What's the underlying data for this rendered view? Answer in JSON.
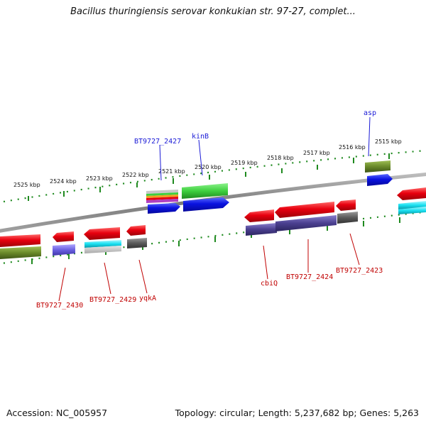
{
  "header": {
    "title": "Bacillus thuringiensis serovar konkukian str. 97-27, complet..."
  },
  "footer": {
    "accession": "Accession: NC_005957",
    "topology": "Topology: circular; Length: 5,237,682 bp; Genes: 5,263"
  },
  "kbp_labels": [
    "2525 kbp",
    "2524 kbp",
    "2523 kbp",
    "2522 kbp",
    "2521 kbp",
    "2520 kbp",
    "2519 kbp",
    "2518 kbp",
    "2517 kbp",
    "2516 kbp",
    "2515 kbp"
  ],
  "gene_labels_forward": [
    "BT9727_2427",
    "kinB",
    "asp"
  ],
  "gene_labels_reverse": [
    "BT9727_2430",
    "BT9727_2429",
    "yqkA",
    "cbiQ",
    "BT9727_2424",
    "BT9727_2423"
  ],
  "colors": {
    "forward_label": "#1a1ad6",
    "reverse_label": "#c00000",
    "backbone": "#888888",
    "tick": "#1f8a1f",
    "cds_red": "#e8000f",
    "cds_blue": "#0a12e0",
    "cog_green": "#3ecf3e",
    "cog_olive": "#6a8a2a",
    "cog_purple": "#4a3f8f",
    "cog_cyan": "#18e0f0",
    "cog_gray": "#5a5a5a"
  }
}
